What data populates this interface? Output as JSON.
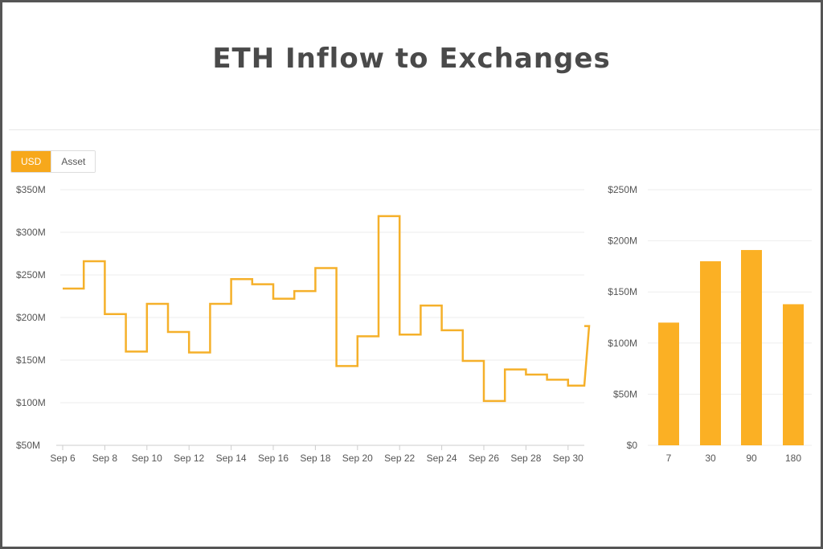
{
  "title": "ETH Inflow to Exchanges",
  "toggle": {
    "usd_label": "USD",
    "asset_label": "Asset",
    "active": "USD"
  },
  "colors": {
    "accent": "#f7a81b",
    "line": "#f5b02a",
    "bar": "#fbb024",
    "grid": "#eeeeee",
    "axis_text": "#555555"
  },
  "chart_data": [
    {
      "type": "line",
      "step": true,
      "ylim": [
        50,
        350
      ],
      "yticks": [
        "$50M",
        "$100M",
        "$150M",
        "$200M",
        "$250M",
        "$300M",
        "$350M"
      ],
      "ytick_values": [
        50,
        100,
        150,
        200,
        250,
        300,
        350
      ],
      "xticks": [
        "Sep 6",
        "Sep 8",
        "Sep 10",
        "Sep 12",
        "Sep 14",
        "Sep 16",
        "Sep 18",
        "Sep 20",
        "Sep 22",
        "Sep 24",
        "Sep 26",
        "Sep 28",
        "Sep 30"
      ],
      "x": [
        "Sep 6",
        "Sep 7",
        "Sep 8",
        "Sep 9",
        "Sep 10",
        "Sep 11",
        "Sep 12",
        "Sep 13",
        "Sep 14",
        "Sep 15",
        "Sep 16",
        "Sep 17",
        "Sep 18",
        "Sep 19",
        "Sep 20",
        "Sep 21",
        "Sep 22",
        "Sep 23",
        "Sep 24",
        "Sep 25",
        "Sep 26",
        "Sep 27",
        "Sep 28",
        "Sep 29",
        "Sep 30",
        "Oct 1"
      ],
      "values": [
        234,
        266,
        204,
        160,
        216,
        183,
        159,
        216,
        245,
        239,
        222,
        231,
        258,
        143,
        178,
        319,
        180,
        214,
        185,
        149,
        102,
        139,
        133,
        127,
        120,
        190
      ],
      "unit": "$M",
      "grid": true
    },
    {
      "type": "bar",
      "ylim": [
        0,
        250
      ],
      "yticks": [
        "$0",
        "$50M",
        "$100M",
        "$150M",
        "$200M",
        "$250M"
      ],
      "ytick_values": [
        0,
        50,
        100,
        150,
        200,
        250
      ],
      "categories": [
        "7",
        "30",
        "90",
        "180"
      ],
      "values": [
        120,
        180,
        191,
        138
      ],
      "unit": "$M",
      "grid": true
    }
  ]
}
